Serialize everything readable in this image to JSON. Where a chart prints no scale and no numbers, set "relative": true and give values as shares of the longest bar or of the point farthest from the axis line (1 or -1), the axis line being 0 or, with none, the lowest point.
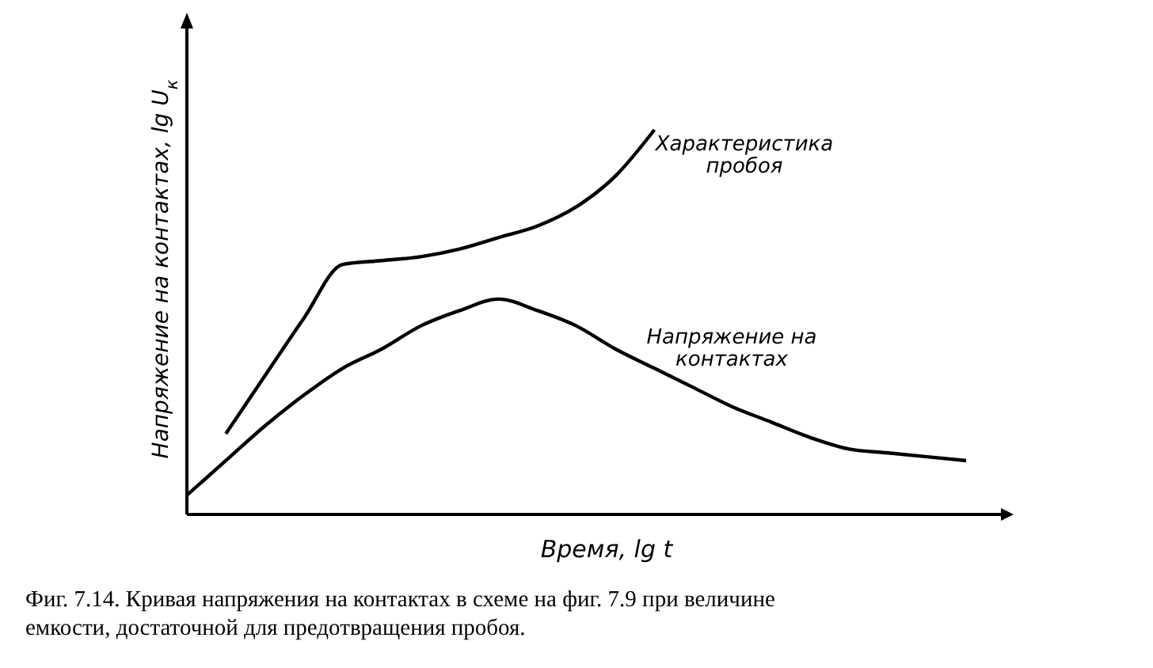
{
  "chart_data": {
    "type": "line",
    "relative": true,
    "xlabel": "Время, lg t",
    "ylabel": "Напряжение на контактах, lg U$_{к}$",
    "categories": [
      null,
      null,
      null,
      null,
      null,
      null,
      null,
      null,
      null,
      null,
      null,
      null,
      null,
      null,
      null,
      null,
      null,
      null,
      null,
      null,
      null
    ],
    "series": [
      {
        "name": "Характеристика пробоя",
        "color": "#000000",
        "values": [
          null,
          0.21,
          0.36,
          0.51,
          0.65,
          0.66,
          0.67,
          0.69,
          0.72,
          0.75,
          0.8,
          0.88,
          1,
          null,
          null,
          null,
          null,
          null,
          null,
          null,
          null
        ]
      },
      {
        "name": "Напряжение на контактах",
        "color": "#000000",
        "values": [
          0.05,
          0.14,
          0.23,
          0.31,
          0.38,
          0.43,
          0.49,
          0.53,
          0.56,
          0.53,
          0.49,
          0.43,
          0.38,
          0.33,
          0.28,
          0.24,
          0.2,
          0.17,
          0.16,
          0.15,
          0.14
        ]
      }
    ],
    "annotations": [
      "Фиг. 7.14. Кривая напряжения на контактах в схеме на фиг. 7.9 при величине емкости, достаточной для предотвращения пробоя."
    ],
    "marker": "none",
    "line_style": "solid"
  }
}
